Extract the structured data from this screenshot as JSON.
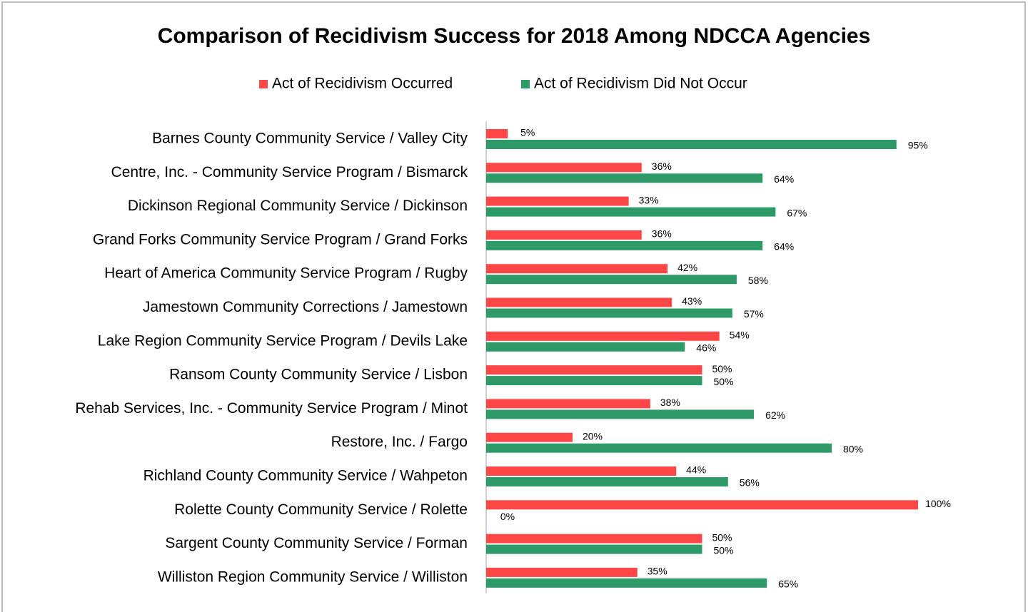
{
  "chart_data": {
    "type": "bar",
    "orientation": "horizontal",
    "title": "Comparison of Recidivism Success for 2018 Among NDCCA Agencies",
    "categories": [
      "Barnes County Community Service / Valley City",
      "Centre, Inc. - Community Service Program / Bismarck",
      "Dickinson Regional Community Service / Dickinson",
      "Grand Forks Community Service Program / Grand Forks",
      "Heart of America Community Service Program / Rugby",
      "Jamestown Community Corrections / Jamestown",
      "Lake Region Community Service Program / Devils Lake",
      "Ransom County Community Service / Lisbon",
      "Rehab Services, Inc. - Community Service Program / Minot",
      "Restore, Inc. / Fargo",
      "Richland County Community Service / Wahpeton",
      "Rolette County Community Service / Rolette",
      "Sargent County Community Service / Forman",
      "Williston Region Community Service / Williston"
    ],
    "series": [
      {
        "name": "Act of Recidivism Occurred",
        "color": "#ff4747",
        "values": [
          5,
          36,
          33,
          36,
          42,
          43,
          54,
          50,
          38,
          20,
          44,
          100,
          50,
          35
        ],
        "value_labels": [
          "5%",
          "36%",
          "33%",
          "36%",
          "42%",
          "43%",
          "54%",
          "50%",
          "38%",
          "20%",
          "44%",
          "100%",
          "50%",
          "35%"
        ]
      },
      {
        "name": "Act of Recidivism Did Not Occur",
        "color": "#2e9a68",
        "values": [
          95,
          64,
          67,
          64,
          58,
          57,
          46,
          50,
          62,
          80,
          56,
          0,
          50,
          65
        ],
        "value_labels": [
          "95%",
          "64%",
          "67%",
          "64%",
          "58%",
          "57%",
          "46%",
          "50%",
          "62%",
          "80%",
          "56%",
          "0%",
          "50%",
          "65%"
        ]
      }
    ],
    "xlim": [
      0,
      100
    ],
    "legend": "top"
  }
}
